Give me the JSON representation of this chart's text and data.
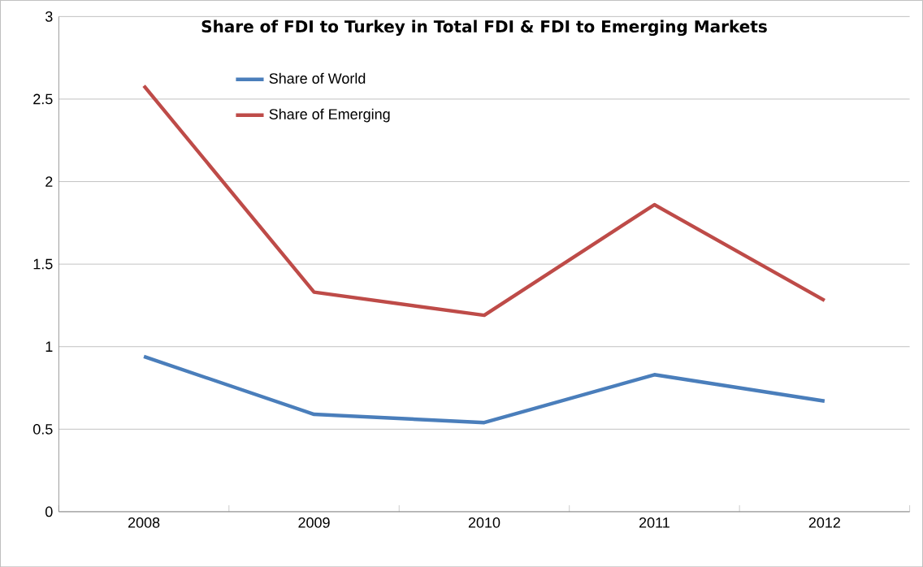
{
  "chart_data": {
    "type": "line",
    "title": "Share of FDI to Turkey in Total FDI & FDI to Emerging Markets",
    "categories": [
      "2008",
      "2009",
      "2010",
      "2011",
      "2012"
    ],
    "series": [
      {
        "name": "Share of World",
        "color": "#4a7ebb",
        "values": [
          0.94,
          0.59,
          0.54,
          0.83,
          0.67
        ]
      },
      {
        "name": "Share of Emerging",
        "color": "#be4b48",
        "values": [
          2.58,
          1.33,
          1.19,
          1.86,
          1.28
        ]
      }
    ],
    "ylim": [
      0,
      3
    ],
    "yticks": [
      0,
      0.5,
      1,
      1.5,
      2,
      2.5,
      3
    ],
    "grid": "y",
    "legend": "top left",
    "marker": "none",
    "line_style": "solid"
  }
}
